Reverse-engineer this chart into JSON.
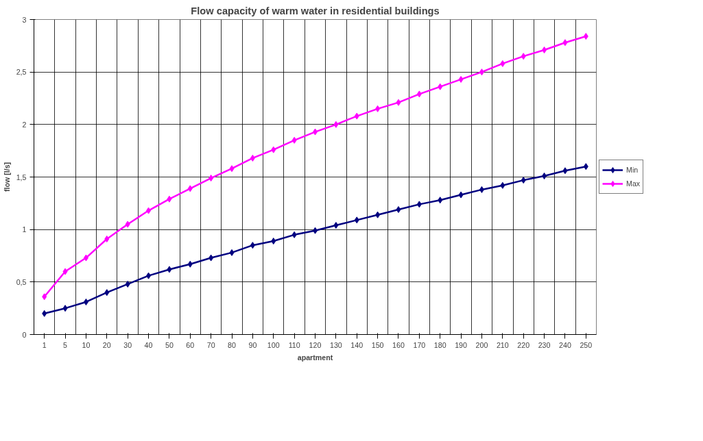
{
  "chart_data": {
    "type": "line",
    "title": "Flow capacity of warm water in residential buildings",
    "xlabel": "apartment",
    "ylabel": "flow [l/s]",
    "categories": [
      "1",
      "5",
      "10",
      "20",
      "30",
      "40",
      "50",
      "60",
      "70",
      "80",
      "90",
      "100",
      "110",
      "120",
      "130",
      "140",
      "150",
      "160",
      "170",
      "180",
      "190",
      "200",
      "210",
      "220",
      "230",
      "240",
      "250"
    ],
    "series": [
      {
        "name": "Min",
        "color": "#000080",
        "values": [
          0.2,
          0.25,
          0.31,
          0.4,
          0.48,
          0.56,
          0.62,
          0.67,
          0.73,
          0.78,
          0.85,
          0.89,
          0.95,
          0.99,
          1.04,
          1.09,
          1.14,
          1.19,
          1.24,
          1.28,
          1.33,
          1.38,
          1.42,
          1.47,
          1.51,
          1.56,
          1.6
        ]
      },
      {
        "name": "Max",
        "color": "#ff00ff",
        "values": [
          0.36,
          0.6,
          0.73,
          0.91,
          1.05,
          1.18,
          1.29,
          1.39,
          1.49,
          1.58,
          1.68,
          1.76,
          1.85,
          1.93,
          2.0,
          2.08,
          2.15,
          2.21,
          2.29,
          2.36,
          2.43,
          2.5,
          2.58,
          2.65,
          2.71,
          2.78,
          2.84
        ]
      }
    ],
    "ylim": [
      0,
      3
    ],
    "yticks": [
      0,
      {
        "value": 0.5,
        "label": "0,5"
      },
      1,
      {
        "value": 1.5,
        "label": "1,5"
      },
      2,
      {
        "value": 2.5,
        "label": "2,5"
      },
      3
    ],
    "grid": true,
    "legend": "right",
    "marker": "diamond",
    "line_style": "solid"
  }
}
